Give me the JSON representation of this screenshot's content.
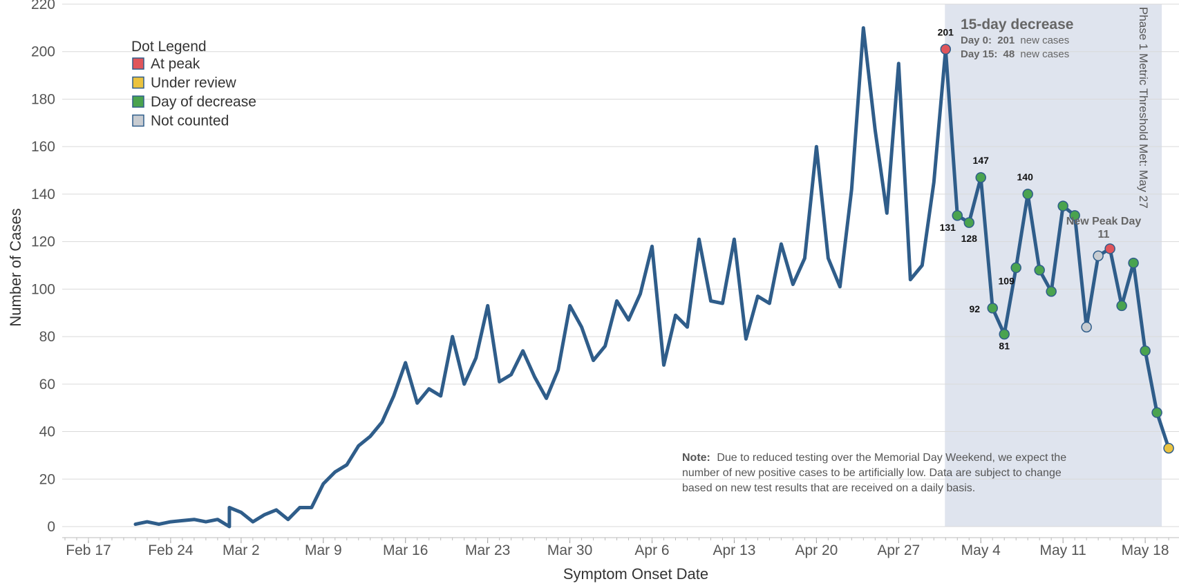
{
  "chart_data": {
    "type": "line",
    "xlabel": "Symptom Onset Date",
    "ylabel": "Number of Cases",
    "ylim": [
      0,
      220
    ],
    "y_ticks": [
      0,
      20,
      40,
      60,
      80,
      100,
      120,
      140,
      160,
      180,
      200,
      220
    ],
    "x_ticks": [
      "Feb 17",
      "Feb 24",
      "Mar 2",
      "Mar 9",
      "Mar 16",
      "Mar 23",
      "Mar 30",
      "Apr 6",
      "Apr 13",
      "Apr 20",
      "Apr 27",
      "May 4",
      "May 11",
      "May 18"
    ],
    "grid": true,
    "line_color": "#2f5d8a",
    "x": [
      "Feb 21",
      "Feb 22",
      "Feb 23",
      "Feb 24",
      "Feb 25",
      "Feb 26",
      "Feb 27",
      "Feb 28",
      "Feb 29",
      "Mar 1",
      "Mar 2",
      "Mar 3",
      "Mar 4",
      "Mar 5",
      "Mar 6",
      "Mar 7",
      "Mar 8",
      "Mar 9",
      "Mar 10",
      "Mar 11",
      "Mar 12",
      "Mar 13",
      "Mar 14",
      "Mar 15",
      "Mar 16",
      "Mar 17",
      "Mar 18",
      "Mar 19",
      "Mar 20",
      "Mar 21",
      "Mar 22",
      "Mar 23",
      "Mar 24",
      "Mar 25",
      "Mar 26",
      "Mar 27",
      "Mar 28",
      "Mar 29",
      "Mar 30",
      "Mar 31",
      "Apr 1",
      "Apr 2",
      "Apr 3",
      "Apr 4",
      "Apr 5",
      "Apr 6",
      "Apr 7",
      "Apr 8",
      "Apr 9",
      "Apr 10",
      "Apr 11",
      "Apr 12",
      "Apr 13",
      "Apr 14",
      "Apr 15",
      "Apr 16",
      "Apr 17",
      "Apr 18",
      "Apr 19",
      "Apr 20",
      "Apr 21",
      "Apr 22",
      "Apr 23",
      "Apr 24",
      "Apr 25",
      "Apr 26",
      "Apr 27",
      "Apr 28",
      "Apr 29",
      "Apr 30",
      "May 1",
      "May 2",
      "May 3",
      "May 4",
      "May 5",
      "May 6",
      "May 7",
      "May 8",
      "May 9",
      "May 10",
      "May 11",
      "May 12",
      "May 13",
      "May 14",
      "May 15",
      "May 16",
      "May 17",
      "May 18",
      "May 19",
      "May 20"
    ],
    "values": [
      1,
      2,
      1,
      2,
      2.5,
      3,
      2,
      3,
      0,
      8,
      6,
      2,
      5,
      7,
      3,
      8,
      8,
      18,
      23,
      26,
      34,
      38,
      44,
      55,
      69,
      52,
      58,
      55,
      80,
      60,
      71,
      93,
      61,
      64,
      74,
      63,
      54,
      66,
      93,
      84,
      70,
      76,
      95,
      87,
      98,
      118,
      68,
      89,
      84,
      121,
      95,
      94,
      121,
      79,
      97,
      94,
      119,
      102,
      113,
      160,
      113,
      101,
      142,
      210,
      167,
      132,
      195,
      104,
      110,
      145,
      201,
      131,
      128,
      147,
      92,
      81,
      109,
      140,
      108,
      99,
      135,
      131,
      84,
      114,
      117,
      93,
      111,
      74,
      48,
      33
    ],
    "markers": [
      {
        "x": "May 1",
        "y": 201,
        "status": "At peak",
        "label": "201"
      },
      {
        "x": "May 2",
        "y": 131,
        "status": "Day of decrease",
        "label": "131"
      },
      {
        "x": "May 3",
        "y": 128,
        "status": "Day of decrease",
        "label": "128"
      },
      {
        "x": "May 4",
        "y": 147,
        "status": "Day of decrease",
        "label": "147"
      },
      {
        "x": "May 5",
        "y": 92,
        "status": "Day of decrease",
        "label": "92"
      },
      {
        "x": "May 6",
        "y": 81,
        "status": "Day of decrease",
        "label": "81"
      },
      {
        "x": "May 7",
        "y": 109,
        "status": "Day of decrease",
        "label": "109"
      },
      {
        "x": "May 8",
        "y": 140,
        "status": "Day of decrease",
        "label": "140"
      },
      {
        "x": "May 9",
        "y": 108,
        "status": "Day of decrease",
        "label": ""
      },
      {
        "x": "May 10",
        "y": 99,
        "status": "Day of decrease",
        "label": ""
      },
      {
        "x": "May 11",
        "y": 135,
        "status": "Day of decrease",
        "label": ""
      },
      {
        "x": "May 12",
        "y": 131,
        "status": "Day of decrease",
        "label": ""
      },
      {
        "x": "May 13",
        "y": 84,
        "status": "Not counted",
        "label": ""
      },
      {
        "x": "May 14",
        "y": 114,
        "status": "Not counted",
        "label": ""
      },
      {
        "x": "May 15",
        "y": 117,
        "status": "At peak",
        "label": ""
      },
      {
        "x": "May 16",
        "y": 93,
        "status": "Day of decrease",
        "label": ""
      },
      {
        "x": "May 17",
        "y": 111,
        "status": "Day of decrease",
        "label": ""
      },
      {
        "x": "May 18",
        "y": 74,
        "status": "Day of decrease",
        "label": ""
      },
      {
        "x": "May 19",
        "y": 48,
        "status": "Day of decrease",
        "label": ""
      },
      {
        "x": "May 20",
        "y": 33,
        "status": "Under review",
        "label": ""
      }
    ],
    "highlight_region": {
      "start": "May 1",
      "end": "May 18",
      "color": "#dfe4ee"
    },
    "legend": {
      "title": "Dot Legend",
      "placement": "top-left",
      "items": [
        {
          "label": "At peak",
          "color": "#e0555b"
        },
        {
          "label": "Under review",
          "color": "#ebc33f"
        },
        {
          "label": "Day of decrease",
          "color": "#4aa34f"
        },
        {
          "label": "Not counted",
          "color": "#c8ccd1"
        }
      ]
    },
    "annotations": {
      "decrease_title": "15-day decrease",
      "day0_label": "Day 0:",
      "day0_value": "201",
      "day0_suffix": "new cases",
      "day15_label": "Day 15:",
      "day15_value": "48",
      "day15_suffix": "new cases",
      "threshold": "Phase 1 Metric Threshold Met: May 27",
      "new_peak_line1": "New Peak Day",
      "new_peak_line2": "11",
      "note_bold": "Note:",
      "note_line1": "Due to reduced testing over the Memorial Day Weekend, we expect the",
      "note_line2": "number of new positive cases to be artificially low. Data are subject to change",
      "note_line3": "based on new test results that are received on a daily basis."
    }
  }
}
